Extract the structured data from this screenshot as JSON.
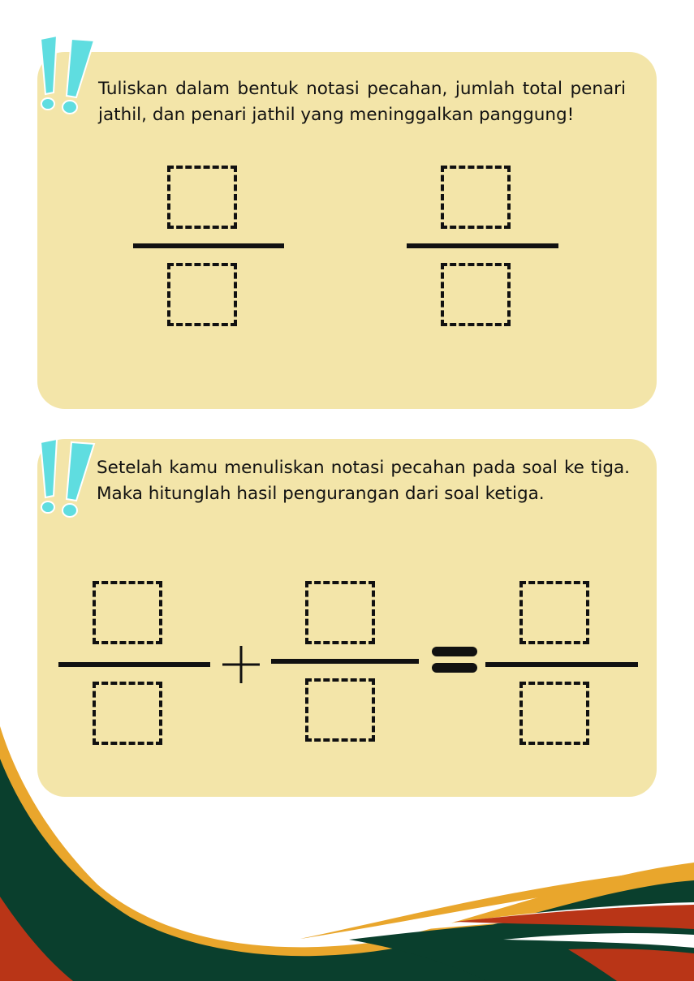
{
  "colors": {
    "card": "#f3e5a9",
    "exclamation": "#5fdde0",
    "wave_orange": "#e9a62c",
    "wave_green": "#0a3f2d",
    "wave_red": "#b93517"
  },
  "icons": {
    "exclamation": "double-exclamation-icon",
    "plus": "plus-icon",
    "equals": "equals-icon"
  },
  "question1": {
    "prompt": "Tuliskan dalam bentuk notasi pecahan, jumlah total penari jathil, dan penari jathil yang meninggalkan panggung!"
  },
  "question2": {
    "prompt": "Setelah kamu menuliskan notasi pecahan pada soal ke tiga. Maka hitunglah hasil pengurangan dari soal ketiga."
  }
}
